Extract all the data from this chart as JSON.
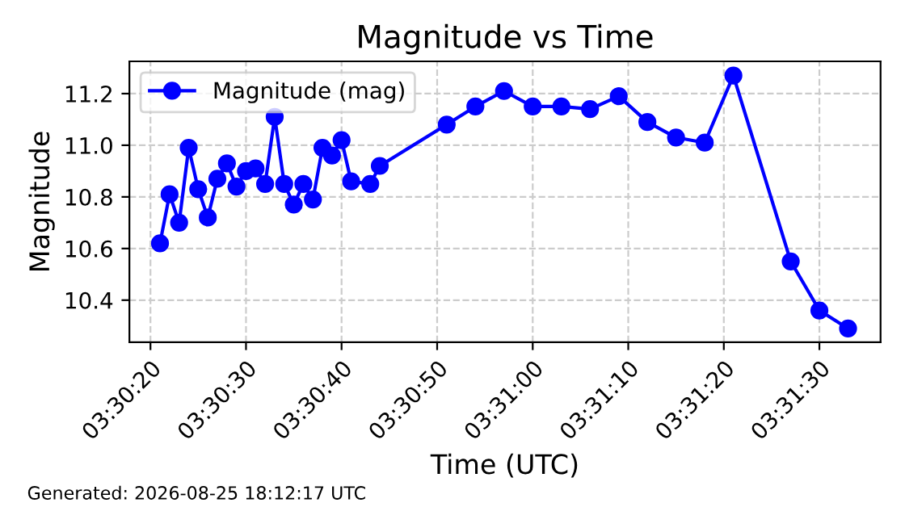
{
  "chart_data": {
    "type": "line",
    "title": "Magnitude vs Time",
    "xlabel": "Time (UTC)",
    "ylabel": "Magnitude",
    "annotations": [
      "Generated: 2026-08-25 18:12:17 UTC"
    ],
    "x": [
      3.505833,
      3.506111,
      3.506389,
      3.506667,
      3.506944,
      3.507222,
      3.5075,
      3.507778,
      3.508056,
      3.508333,
      3.508611,
      3.508889,
      3.509167,
      3.509444,
      3.509722,
      3.51,
      3.510278,
      3.510556,
      3.510833,
      3.511111,
      3.511389,
      3.511944,
      3.512222,
      3.514167,
      3.515,
      3.515833,
      3.516667,
      3.5175,
      3.518333,
      3.519167,
      3.52,
      3.520833,
      3.521667,
      3.5225,
      3.524167,
      3.525,
      3.525833
    ],
    "series": [
      {
        "name": "Magnitude (mag)",
        "color": "#0000ff",
        "values": [
          10.62,
          10.81,
          10.7,
          10.99,
          10.83,
          10.72,
          10.87,
          10.93,
          10.84,
          10.9,
          10.91,
          10.85,
          11.11,
          10.85,
          10.77,
          10.85,
          10.79,
          10.99,
          10.96,
          11.02,
          10.86,
          10.85,
          10.92,
          11.08,
          11.15,
          11.21,
          11.15,
          11.15,
          11.14,
          11.19,
          11.09,
          11.03,
          11.01,
          11.27,
          10.55,
          10.36,
          10.29
        ]
      }
    ],
    "xlim": [
      3.504944,
      3.526778
    ],
    "xticks": [
      {
        "value": 3.505556,
        "label": "03:30:20"
      },
      {
        "value": 3.508333,
        "label": "03:30:30"
      },
      {
        "value": 3.511111,
        "label": "03:30:40"
      },
      {
        "value": 3.513889,
        "label": "03:30:50"
      },
      {
        "value": 3.516667,
        "label": "03:31:00"
      },
      {
        "value": 3.519444,
        "label": "03:31:10"
      },
      {
        "value": 3.522222,
        "label": "03:31:20"
      },
      {
        "value": 3.525,
        "label": "03:31:30"
      }
    ],
    "ylim": [
      10.237,
      11.325
    ],
    "yticks": [
      {
        "value": 10.4,
        "label": "10.4"
      },
      {
        "value": 10.6,
        "label": "10.6"
      },
      {
        "value": 10.8,
        "label": "10.8"
      },
      {
        "value": 11,
        "label": "11.0"
      },
      {
        "value": 11.2,
        "label": "11.2"
      }
    ],
    "grid": true,
    "legend": "top left",
    "marker": "circle",
    "line_style": "solid"
  }
}
